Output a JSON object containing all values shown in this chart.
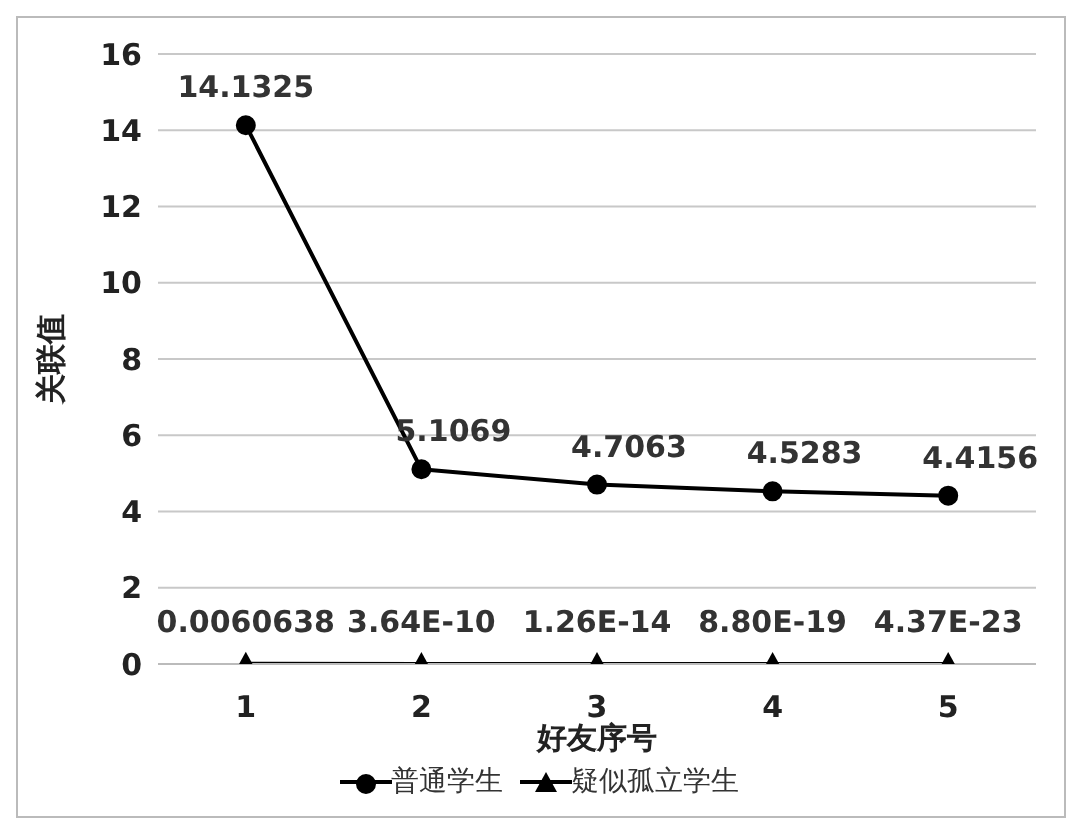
{
  "chart_data": {
    "type": "line",
    "xlabel": "好友序号",
    "ylabel": "关联值",
    "categories": [
      "1",
      "2",
      "3",
      "4",
      "5"
    ],
    "ylim": [
      0,
      16
    ],
    "yticks": [
      0,
      2,
      4,
      6,
      8,
      10,
      12,
      14,
      16
    ],
    "grid": "y",
    "legend": "bottom",
    "series": [
      {
        "name": "普通学生",
        "color": "#000000",
        "marker": "circle",
        "values": [
          14.1325,
          5.1069,
          4.7063,
          4.5283,
          4.4156
        ],
        "value_labels": [
          "14.1325",
          "5.1069",
          "4.7063",
          "4.5283",
          "4.4156"
        ]
      },
      {
        "name": "疑似孤立学生",
        "color": "#000000",
        "marker": "triangle",
        "values": [
          0.0060638,
          3.64e-10,
          1.26e-14,
          8.8e-19,
          4.37e-23
        ],
        "value_labels": [
          "0.0060638",
          "3.64E-10",
          "1.26E-14",
          "8.80E-19",
          "4.37E-23"
        ]
      }
    ]
  }
}
